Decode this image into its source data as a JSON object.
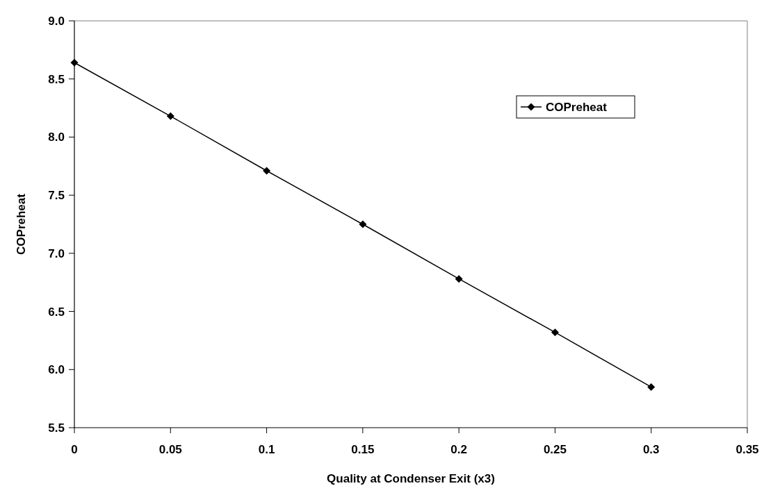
{
  "chart_data": {
    "type": "line",
    "xlabel": "Quality at Condenser Exit (x3)",
    "ylabel": "COPreheat",
    "x": [
      0,
      0.05,
      0.1,
      0.15,
      0.2,
      0.25,
      0.3
    ],
    "series": [
      {
        "name": "COPreheat",
        "color": "#000000",
        "values": [
          8.64,
          8.18,
          7.71,
          7.25,
          6.78,
          6.32,
          5.85
        ]
      }
    ],
    "xlim": [
      0,
      0.35
    ],
    "xticks": [
      0,
      0.05,
      0.1,
      0.15,
      0.2,
      0.25,
      0.3,
      0.35
    ],
    "ylim": [
      5.5,
      9.0
    ],
    "yticks": [
      {
        "value": 5.5,
        "label": "5.5"
      },
      {
        "value": 6,
        "label": "6.0"
      },
      {
        "value": 6.5,
        "label": "6.5"
      },
      {
        "value": 7,
        "label": "7.0"
      },
      {
        "value": 7.5,
        "label": "7.5"
      },
      {
        "value": 8,
        "label": "8.0"
      },
      {
        "value": 8.5,
        "label": "8.5"
      },
      {
        "value": 9,
        "label": "9.0"
      }
    ],
    "grid": false,
    "legend": "top right",
    "marker": "diamond",
    "line_style": "solid"
  }
}
